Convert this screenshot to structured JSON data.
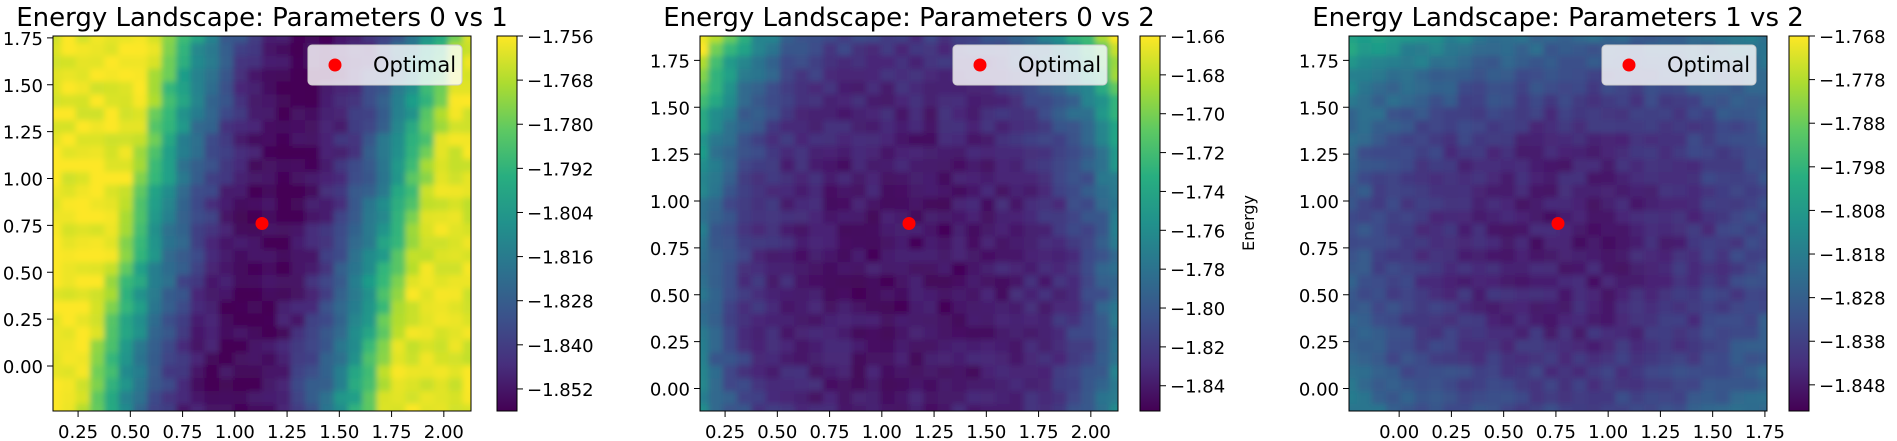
{
  "chart_data": [
    {
      "type": "heatmap",
      "title": "Energy Landscape: Parameters 0 vs 1",
      "xticks": [
        0.25,
        0.5,
        0.75,
        1.0,
        1.25,
        1.5,
        1.75,
        2.0
      ],
      "xtick_labels": [
        "0.25",
        "0.50",
        "0.75",
        "1.00",
        "1.25",
        "1.50",
        "1.75",
        "2.00"
      ],
      "yticks": [
        0.0,
        0.25,
        0.5,
        0.75,
        1.0,
        1.25,
        1.5,
        1.75
      ],
      "ytick_labels": [
        "0.00",
        "0.25",
        "0.50",
        "0.75",
        "1.00",
        "1.25",
        "1.50",
        "1.75"
      ],
      "xlim": [
        0.13,
        2.13
      ],
      "ylim": [
        -0.24,
        1.76
      ],
      "colorbar": {
        "range": [
          -1.858,
          -1.756
        ],
        "ticks": [
          -1.756,
          -1.768,
          -1.78,
          -1.792,
          -1.804,
          -1.816,
          -1.828,
          -1.84,
          -1.852
        ],
        "tick_labels": [
          "−1.756",
          "−1.768",
          "−1.780",
          "−1.792",
          "−1.804",
          "−1.816",
          "−1.828",
          "−1.840",
          "−1.852"
        ],
        "label": ""
      },
      "optimal": {
        "x": 1.13,
        "y": 0.76
      },
      "legend": {
        "label": "Optimal",
        "placement": "upper right"
      },
      "pattern": "diagonal-valley"
    },
    {
      "type": "heatmap",
      "title": "Energy Landscape: Parameters 0 vs 2",
      "xticks": [
        0.25,
        0.5,
        0.75,
        1.0,
        1.25,
        1.5,
        1.75,
        2.0
      ],
      "xtick_labels": [
        "0.25",
        "0.50",
        "0.75",
        "1.00",
        "1.25",
        "1.50",
        "1.75",
        "2.00"
      ],
      "yticks": [
        0.0,
        0.25,
        0.5,
        0.75,
        1.0,
        1.25,
        1.5,
        1.75
      ],
      "ytick_labels": [
        "0.00",
        "0.25",
        "0.50",
        "0.75",
        "1.00",
        "1.25",
        "1.50",
        "1.75"
      ],
      "xlim": [
        0.13,
        2.13
      ],
      "ylim": [
        -0.12,
        1.88
      ],
      "colorbar": {
        "range": [
          -1.853,
          -1.66
        ],
        "ticks": [
          -1.66,
          -1.68,
          -1.7,
          -1.72,
          -1.74,
          -1.76,
          -1.78,
          -1.8,
          -1.82,
          -1.84
        ],
        "tick_labels": [
          "−1.66",
          "−1.68",
          "−1.70",
          "−1.72",
          "−1.74",
          "−1.76",
          "−1.78",
          "−1.80",
          "−1.82",
          "−1.84"
        ],
        "label": "Energy"
      },
      "optimal": {
        "x": 1.13,
        "y": 0.88
      },
      "legend": {
        "label": "Optimal",
        "placement": "upper right"
      },
      "pattern": "bowl-top-corners"
    },
    {
      "type": "heatmap",
      "title": "Energy Landscape: Parameters 1 vs 2",
      "xticks": [
        0.0,
        0.25,
        0.5,
        0.75,
        1.0,
        1.25,
        1.5,
        1.75
      ],
      "xtick_labels": [
        "0.00",
        "0.25",
        "0.50",
        "0.75",
        "1.00",
        "1.25",
        "1.50",
        "1.75"
      ],
      "yticks": [
        0.0,
        0.25,
        0.5,
        0.75,
        1.0,
        1.25,
        1.5,
        1.75
      ],
      "ytick_labels": [
        "0.00",
        "0.25",
        "0.50",
        "0.75",
        "1.00",
        "1.25",
        "1.50",
        "1.75"
      ],
      "xlim": [
        -0.24,
        1.76
      ],
      "ylim": [
        -0.12,
        1.88
      ],
      "colorbar": {
        "range": [
          -1.854,
          -1.768
        ],
        "ticks": [
          -1.768,
          -1.778,
          -1.788,
          -1.798,
          -1.808,
          -1.818,
          -1.828,
          -1.838,
          -1.848
        ],
        "tick_labels": [
          "−1.768",
          "−1.778",
          "−1.788",
          "−1.798",
          "−1.808",
          "−1.818",
          "−1.828",
          "−1.838",
          "−1.848"
        ],
        "label": ""
      },
      "optimal": {
        "x": 0.76,
        "y": 0.88
      },
      "legend": {
        "label": "Optimal",
        "placement": "upper right"
      },
      "pattern": "shallow-bowl-top-left"
    }
  ],
  "colors": {
    "optimal_marker": "#ff0000",
    "colormap": "viridis"
  }
}
